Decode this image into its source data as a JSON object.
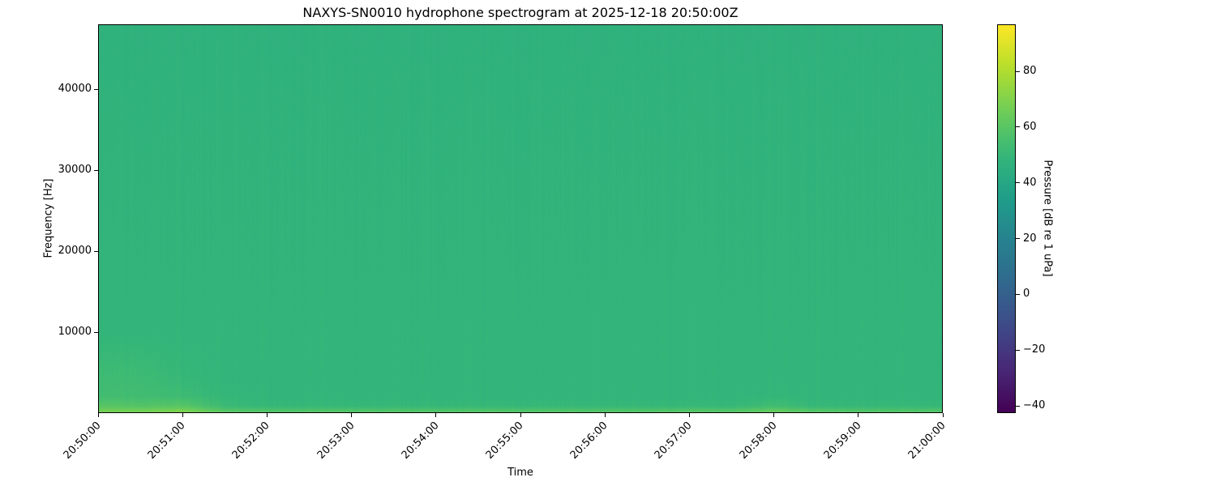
{
  "chart_data": {
    "type": "heatmap",
    "title": "NAXYS-SN0010 hydrophone spectrogram at 2025-12-18 20:50:00Z",
    "xlabel": "Time",
    "ylabel": "Frequency [Hz]",
    "colorbar_label": "Pressure [dB re 1 uPa]",
    "colormap": "viridis",
    "clim": [
      -42.6,
      96.9
    ],
    "xlim": [
      "20:50:00",
      "21:00:00"
    ],
    "ylim": [
      0,
      48000
    ],
    "x_ticks": [
      "20:50:00",
      "20:51:00",
      "20:52:00",
      "20:53:00",
      "20:54:00",
      "20:55:00",
      "20:56:00",
      "20:57:00",
      "20:58:00",
      "20:59:00",
      "21:00:00"
    ],
    "y_ticks": [
      10000,
      20000,
      30000,
      40000
    ],
    "colorbar_ticks": [
      -40,
      -20,
      0,
      20,
      40,
      60,
      80
    ],
    "grid": false,
    "frequencies_hz": [
      0,
      300,
      800,
      2000,
      4000,
      6000,
      10000,
      20000,
      40000,
      48000
    ],
    "times": [
      "20:50:00",
      "20:50:30",
      "20:51:00",
      "20:51:30",
      "20:52:00",
      "20:52:30",
      "20:53:00",
      "20:53:30",
      "20:54:00",
      "20:54:30",
      "20:55:00",
      "20:55:30",
      "20:56:00",
      "20:56:30",
      "20:57:00",
      "20:57:30",
      "20:58:00",
      "20:58:30",
      "20:59:00",
      "20:59:30",
      "21:00:00"
    ],
    "values_db": [
      [
        68,
        68,
        70,
        62,
        60,
        60,
        60,
        60,
        60,
        60,
        60,
        60,
        60,
        60,
        60,
        60,
        64,
        60,
        60,
        60,
        60
      ],
      [
        66,
        66,
        68,
        58,
        57,
        57,
        57,
        57,
        57,
        57,
        57,
        57,
        57,
        57,
        58,
        58,
        62,
        58,
        57,
        57,
        57
      ],
      [
        60,
        59,
        60,
        52,
        51,
        51,
        51,
        51,
        51,
        51,
        51,
        51,
        51,
        51,
        51,
        51,
        54,
        51,
        51,
        51,
        51
      ],
      [
        54,
        54,
        53,
        50,
        49,
        49,
        49,
        49,
        49,
        49,
        49,
        49,
        49,
        49,
        49,
        49,
        50,
        49,
        49,
        49,
        49
      ],
      [
        53,
        53,
        51,
        49,
        49,
        49,
        49,
        49,
        49,
        49,
        49,
        49,
        49,
        49,
        49,
        49,
        49,
        49,
        49,
        49,
        49
      ],
      [
        52,
        52,
        50,
        49,
        49,
        49,
        49,
        49,
        49,
        49,
        49,
        49,
        49,
        49,
        49,
        49,
        49,
        49,
        49,
        49,
        49
      ],
      [
        49,
        49,
        49,
        49,
        49,
        49,
        49,
        49,
        49,
        49,
        49,
        49,
        49,
        49,
        49,
        49,
        49,
        49,
        49,
        49,
        49
      ],
      [
        48.5,
        48.5,
        48.5,
        48.5,
        48.5,
        48.5,
        48.5,
        48.5,
        48.5,
        48.5,
        48.5,
        48.5,
        48.5,
        48.5,
        48.5,
        48.5,
        48.5,
        48.5,
        48.5,
        48.5,
        48.5
      ],
      [
        47.5,
        47.5,
        47.5,
        47.5,
        47.5,
        47.5,
        47.5,
        47.5,
        47.5,
        47.5,
        47.5,
        47.5,
        47.5,
        47.5,
        47.5,
        47.5,
        47.5,
        47.5,
        47.5,
        47.5,
        47.5
      ],
      [
        47,
        47,
        47,
        47,
        47,
        47,
        47,
        47,
        47,
        47,
        47,
        47,
        47,
        47,
        47,
        47,
        47,
        47,
        47,
        47,
        47
      ]
    ]
  }
}
